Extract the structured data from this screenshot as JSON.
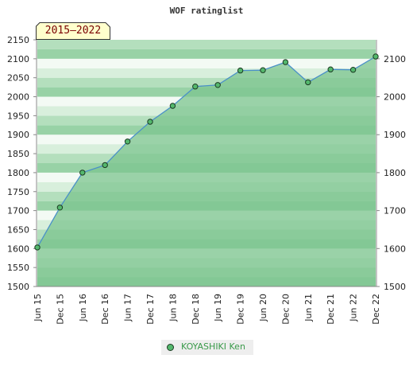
{
  "title": "WOF ratinglist",
  "period_label": "2015–2022",
  "legend": {
    "label": "KOYASHIKI Ken"
  },
  "colors": {
    "line": "#4a90c8",
    "marker_fill": "#54b86d",
    "marker_stroke": "#1b3a22",
    "band_light": "#f3faf4",
    "band_mid_light": "#d8efdc",
    "band_mid": "#b4dfbd",
    "band_dark": "#98d2a6",
    "area_fill": "#7cc48f"
  },
  "chart_data": {
    "type": "area",
    "title": "WOF ratinglist",
    "x": [
      "Jun 15",
      "Dec 15",
      "Jun 16",
      "Dec 16",
      "Jun 17",
      "Dec 17",
      "Jun 18",
      "Dec 18",
      "Jun 19",
      "Dec 19",
      "Jun 20",
      "Dec 20",
      "Jun 21",
      "Dec 21",
      "Jun 22",
      "Dec 22"
    ],
    "series": [
      {
        "name": "KOYASHIKI Ken",
        "values": [
          1603,
          1708,
          1800,
          1820,
          1882,
          1934,
          1976,
          2027,
          2031,
          2069,
          2070,
          2091,
          2038,
          2072,
          2071,
          2106
        ]
      }
    ],
    "ylim": [
      1500,
      2150
    ],
    "left_ticks": [
      1500,
      1550,
      1600,
      1650,
      1700,
      1750,
      1800,
      1850,
      1900,
      1950,
      2000,
      2050,
      2100,
      2150
    ],
    "right_ticks": [
      1500,
      1600,
      1700,
      1800,
      1900,
      2000,
      2100
    ],
    "grid": false,
    "legend_position": "bottom-center"
  }
}
